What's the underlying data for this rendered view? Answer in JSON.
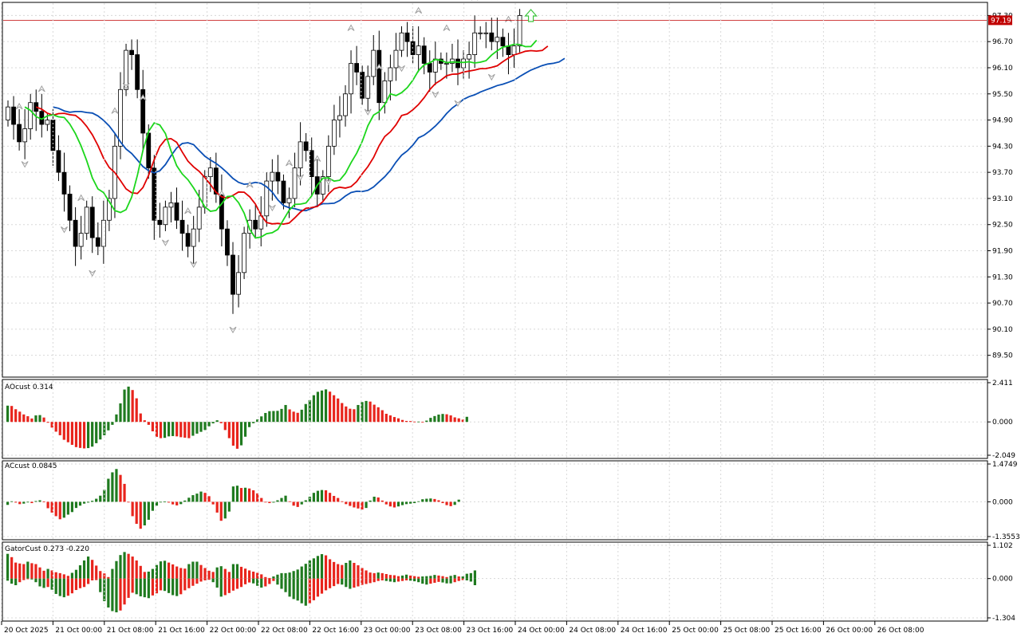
{
  "colors": {
    "bull_bar": "#1f7a1f",
    "bear_bar": "#e8241c",
    "ma_fast": "#1cd61c",
    "ma_mid": "#e00000",
    "ma_slow": "#0a4fb5",
    "price_line": "#c00000",
    "grid": "#d8d8d8",
    "fractal": "#a0a0a0",
    "signal_arrow": "#3cc43c"
  },
  "chart_data": [
    {
      "type": "candlestick",
      "panel": "main",
      "current_price": "97.19",
      "y_ticks": [
        "97.30",
        "96.70",
        "96.10",
        "95.50",
        "94.90",
        "94.30",
        "93.70",
        "93.10",
        "92.50",
        "91.90",
        "91.30",
        "90.70",
        "90.10",
        "89.50"
      ],
      "ylim": [
        89.0,
        97.6
      ],
      "x_ticks": [
        "20 Oct 2025",
        "21 Oct 00:00",
        "21 Oct 08:00",
        "21 Oct 16:00",
        "22 Oct 00:00",
        "22 Oct 08:00",
        "22 Oct 16:00",
        "23 Oct 00:00",
        "23 Oct 08:00",
        "23 Oct 16:00",
        "24 Oct 00:00",
        "24 Oct 08:00",
        "24 Oct 16:00",
        "25 Oct 00:00",
        "25 Oct 08:00",
        "25 Oct 16:00",
        "26 Oct 00:00",
        "26 Oct 08:00"
      ],
      "close_path": [
        95.2,
        94.8,
        94.4,
        94.7,
        95.3,
        95.1,
        94.8,
        94.9,
        94.2,
        93.7,
        93.2,
        92.6,
        92.0,
        92.3,
        92.9,
        92.2,
        92.0,
        92.6,
        93.1,
        94.3,
        95.6,
        96.5,
        96.4,
        95.6,
        94.6,
        93.8,
        92.6,
        92.5,
        92.9,
        93.0,
        92.6,
        92.3,
        92.0,
        92.4,
        92.9,
        93.6,
        93.8,
        93.2,
        92.4,
        91.8,
        90.9,
        91.4,
        92.3,
        92.6,
        92.4,
        92.7,
        93.5,
        93.7,
        93.5,
        93.0,
        93.1,
        93.8,
        94.4,
        94.2,
        93.6,
        93.2,
        93.6,
        94.3,
        94.9,
        95.0,
        95.5,
        96.2,
        96.0,
        95.4,
        95.9,
        96.5,
        95.3,
        95.8,
        96.1,
        96.5,
        96.9,
        96.7,
        96.4,
        96.6,
        96.2,
        96.0,
        96.3,
        96.2,
        96.2,
        96.3,
        96.1,
        96.3,
        96.4,
        96.9,
        96.9,
        96.9,
        96.7,
        96.8,
        96.6,
        96.4,
        96.6,
        97.3
      ],
      "up_fractal_idx": [
        2,
        6,
        13,
        19,
        24,
        32,
        38,
        43,
        50,
        55,
        61,
        66,
        73,
        78,
        83,
        89
      ],
      "down_fractal_idx": [
        3,
        10,
        15,
        21,
        28,
        33,
        40,
        47,
        52,
        57,
        64,
        70,
        76,
        80,
        86
      ]
    },
    {
      "type": "bar",
      "panel": "AOcust",
      "label": "AOcust 0.314",
      "y_ticks": [
        "2.411",
        "0.000",
        "-2.049"
      ],
      "ylim": [
        -2.049,
        2.411
      ],
      "values": [
        1.0,
        0.98,
        0.78,
        0.63,
        0.46,
        0.35,
        0.21,
        0.4,
        0.42,
        0.27,
        -0.05,
        -0.35,
        -0.6,
        -0.82,
        -1.1,
        -1.25,
        -1.41,
        -1.55,
        -1.6,
        -1.63,
        -1.61,
        -1.52,
        -1.31,
        -1.08,
        -0.82,
        -0.52,
        -0.18,
        0.46,
        1.14,
        1.99,
        2.17,
        1.96,
        1.45,
        0.52,
        0.1,
        -0.18,
        -0.58,
        -0.92,
        -1.0,
        -0.98,
        -0.89,
        -0.87,
        -0.89,
        -0.94,
        -0.97,
        -1.0,
        -0.85,
        -0.72,
        -0.61,
        -0.5,
        -0.27,
        -0.09,
        0.1,
        -0.08,
        -0.5,
        -1.0,
        -1.46,
        -1.65,
        -1.44,
        -0.91,
        -0.32,
        -0.08,
        0.15,
        0.34,
        0.55,
        0.66,
        0.67,
        0.68,
        0.8,
        1.04,
        0.77,
        0.63,
        0.56,
        0.75,
        1.1,
        1.34,
        1.64,
        1.85,
        1.93,
        2.0,
        1.86,
        1.64,
        1.44,
        1.16,
        0.95,
        0.81,
        0.78,
        1.04,
        1.22,
        1.29,
        1.25,
        1.06,
        0.9,
        0.72,
        0.5,
        0.4,
        0.3,
        0.22,
        0.12,
        0.06,
        0.05,
        0.02,
        0.02,
        0.01,
        0.08,
        0.25,
        0.36,
        0.45,
        0.49,
        0.47,
        0.4,
        0.28,
        0.22,
        0.14,
        0.314
      ]
    },
    {
      "type": "bar",
      "panel": "ACcust",
      "label": "ACcust 0.0845",
      "y_ticks": [
        "1.4749",
        "0.000",
        "-1.3553"
      ],
      "ylim": [
        -1.3553,
        1.4749
      ],
      "values": [
        -0.12,
        0.02,
        -0.03,
        -0.09,
        -0.07,
        -0.02,
        -0.05,
        0.03,
        0.06,
        0.01,
        -0.25,
        -0.42,
        -0.56,
        -0.68,
        -0.62,
        -0.5,
        -0.4,
        -0.24,
        -0.15,
        -0.07,
        -0.03,
        0.04,
        0.12,
        0.24,
        0.47,
        0.9,
        1.15,
        1.28,
        1.05,
        0.7,
        -0.02,
        -0.56,
        -0.86,
        -1.05,
        -0.92,
        -0.7,
        -0.35,
        -0.15,
        -0.01,
        0.01,
        -0.03,
        -0.1,
        -0.14,
        -0.09,
        0.05,
        0.16,
        0.26,
        0.32,
        0.4,
        0.35,
        0.22,
        -0.1,
        -0.42,
        -0.74,
        -0.65,
        -0.38,
        0.6,
        0.63,
        0.54,
        0.55,
        0.52,
        0.45,
        0.33,
        0.15,
        -0.02,
        -0.05,
        -0.03,
        0.06,
        0.15,
        0.24,
        0.02,
        -0.15,
        -0.2,
        -0.1,
        0.06,
        0.2,
        0.35,
        0.43,
        0.46,
        0.45,
        0.35,
        0.23,
        0.15,
        0.02,
        -0.09,
        -0.16,
        -0.22,
        -0.26,
        -0.3,
        -0.24,
        0.05,
        0.2,
        0.17,
        0.05,
        -0.1,
        -0.18,
        -0.22,
        -0.18,
        -0.13,
        -0.09,
        -0.07,
        -0.05,
        0.02,
        0.1,
        0.12,
        0.13,
        0.11,
        0.06,
        -0.05,
        -0.13,
        -0.17,
        -0.12,
        0.0845
      ]
    },
    {
      "type": "histogram_pair",
      "panel": "GatorCust",
      "label": "GatorCust 0.273 -0.220",
      "y_ticks": [
        "1.102",
        "0.000",
        "-1.304"
      ],
      "ylim": [
        -1.304,
        1.102
      ],
      "upper": [
        0.82,
        0.71,
        0.53,
        0.5,
        0.48,
        0.56,
        0.51,
        0.48,
        0.37,
        0.26,
        0.32,
        0.27,
        0.21,
        0.18,
        0.14,
        0.09,
        0.19,
        0.29,
        0.44,
        0.6,
        0.73,
        0.62,
        0.43,
        0.25,
        0.17,
        0.05,
        0.32,
        0.58,
        0.78,
        0.88,
        0.82,
        0.73,
        0.6,
        0.42,
        0.22,
        0.23,
        0.32,
        0.45,
        0.57,
        0.59,
        0.53,
        0.47,
        0.4,
        0.35,
        0.33,
        0.48,
        0.56,
        0.56,
        0.45,
        0.35,
        0.26,
        0.22,
        0.37,
        0.41,
        0.32,
        0.22,
        0.48,
        0.48,
        0.39,
        0.33,
        0.27,
        0.23,
        0.19,
        0.14,
        0.05,
        0.02,
        0.07,
        0.13,
        0.18,
        0.18,
        0.2,
        0.25,
        0.3,
        0.4,
        0.49,
        0.6,
        0.67,
        0.75,
        0.81,
        0.77,
        0.64,
        0.55,
        0.48,
        0.45,
        0.52,
        0.6,
        0.52,
        0.44,
        0.35,
        0.27,
        0.2,
        0.18,
        0.2,
        0.18,
        0.15,
        0.12,
        0.11,
        0.08,
        0.1,
        0.13,
        0.1,
        0.08,
        0.06,
        0.07,
        0.08,
        0.09,
        0.12,
        0.1,
        0.08,
        0.05,
        0.09,
        0.12,
        0.07,
        0.07,
        0.16,
        0.18,
        0.27
      ],
      "lower": [
        -0.07,
        -0.17,
        -0.22,
        -0.12,
        -0.05,
        -0.02,
        -0.03,
        -0.12,
        -0.26,
        -0.31,
        -0.28,
        -0.37,
        -0.51,
        -0.58,
        -0.62,
        -0.57,
        -0.49,
        -0.38,
        -0.32,
        -0.28,
        -0.18,
        -0.06,
        -0.05,
        -0.45,
        -0.75,
        -0.96,
        -1.08,
        -1.12,
        -1.06,
        -0.86,
        -0.64,
        -0.47,
        -0.52,
        -0.59,
        -0.62,
        -0.65,
        -0.56,
        -0.49,
        -0.39,
        -0.41,
        -0.48,
        -0.55,
        -0.58,
        -0.52,
        -0.39,
        -0.32,
        -0.24,
        -0.17,
        -0.1,
        -0.06,
        -0.04,
        -0.12,
        -0.3,
        -0.6,
        -0.55,
        -0.48,
        -0.4,
        -0.34,
        -0.28,
        -0.19,
        -0.13,
        -0.16,
        -0.24,
        -0.3,
        -0.26,
        -0.18,
        -0.08,
        -0.2,
        -0.34,
        -0.45,
        -0.6,
        -0.68,
        -0.73,
        -0.82,
        -0.9,
        -0.82,
        -0.72,
        -0.6,
        -0.5,
        -0.39,
        -0.32,
        -0.25,
        -0.18,
        -0.2,
        -0.28,
        -0.34,
        -0.3,
        -0.26,
        -0.21,
        -0.18,
        -0.15,
        -0.12,
        -0.08,
        -0.06,
        -0.08,
        -0.1,
        -0.12,
        -0.1,
        -0.08,
        -0.06,
        -0.07,
        -0.09,
        -0.12,
        -0.17,
        -0.2,
        -0.17,
        -0.14,
        -0.11,
        -0.13,
        -0.16,
        -0.16,
        -0.12,
        -0.08,
        -0.05,
        -0.06,
        -0.1,
        -0.22
      ]
    }
  ]
}
